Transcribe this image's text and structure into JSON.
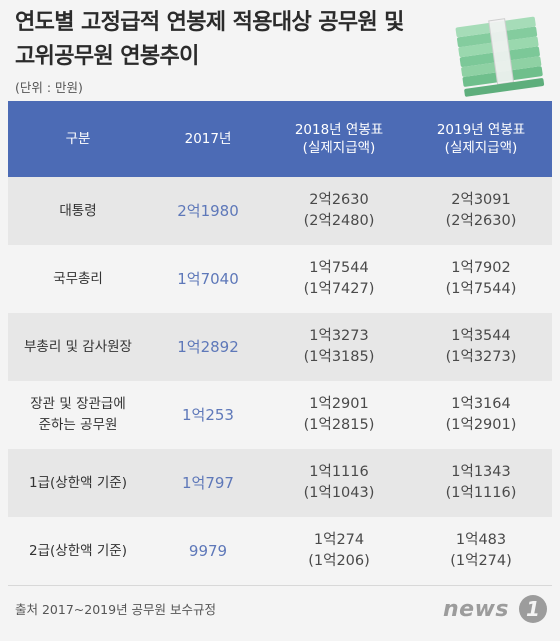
{
  "header": {
    "title_line1": "연도별 고정급적 연봉제 적용대상 공무원 및",
    "title_line2": "고위공무원 연봉추이",
    "unit": "(단위 : 만원)"
  },
  "chart_data": {
    "type": "table",
    "columns": [
      {
        "line1": "구분",
        "line2": ""
      },
      {
        "line1": "2017년",
        "line2": ""
      },
      {
        "line1": "2018년 연봉표",
        "line2": "(실제지급액)"
      },
      {
        "line1": "2019년 연봉표",
        "line2": "(실제지급액)"
      }
    ],
    "rows": [
      {
        "category": [
          "대통령"
        ],
        "y2017": "2억1980",
        "y2018": "2억2630",
        "y2018_actual": "(2억2480)",
        "y2019": "2억3091",
        "y2019_actual": "(2억2630)"
      },
      {
        "category": [
          "국무총리"
        ],
        "y2017": "1억7040",
        "y2018": "1억7544",
        "y2018_actual": "(1억7427)",
        "y2019": "1억7902",
        "y2019_actual": "(1억7544)"
      },
      {
        "category": [
          "부총리 및 감사원장"
        ],
        "y2017": "1억2892",
        "y2018": "1억3273",
        "y2018_actual": "(1억3185)",
        "y2019": "1억3544",
        "y2019_actual": "(1억3273)"
      },
      {
        "category": [
          "장관 및 장관급에",
          "준하는 공무원"
        ],
        "y2017": "1억253",
        "y2018": "1억2901",
        "y2018_actual": "(1억2815)",
        "y2019": "1억3164",
        "y2019_actual": "(1억2901)"
      },
      {
        "category": [
          "1급(상한액 기준)"
        ],
        "y2017": "1억797",
        "y2018": "1억1116",
        "y2018_actual": "(1억1043)",
        "y2019": "1억1343",
        "y2019_actual": "(1억1116)"
      },
      {
        "category": [
          "2급(상한액 기준)"
        ],
        "y2017": "9979",
        "y2018": "1억274",
        "y2018_actual": "(1억206)",
        "y2019": "1억483",
        "y2019_actual": "(1억274)"
      }
    ]
  },
  "footer": {
    "source": "출처 2017~2019년 공무원 보수규정",
    "logo_text": "news",
    "logo_number": "1"
  },
  "colors": {
    "header_bg": "#4c6bb5",
    "row_shade": "#e7e7e7",
    "accent_2017": "#5e78b9",
    "money_green": "#8fd1a4"
  },
  "icons": {
    "illustration": "money-stack-icon"
  }
}
